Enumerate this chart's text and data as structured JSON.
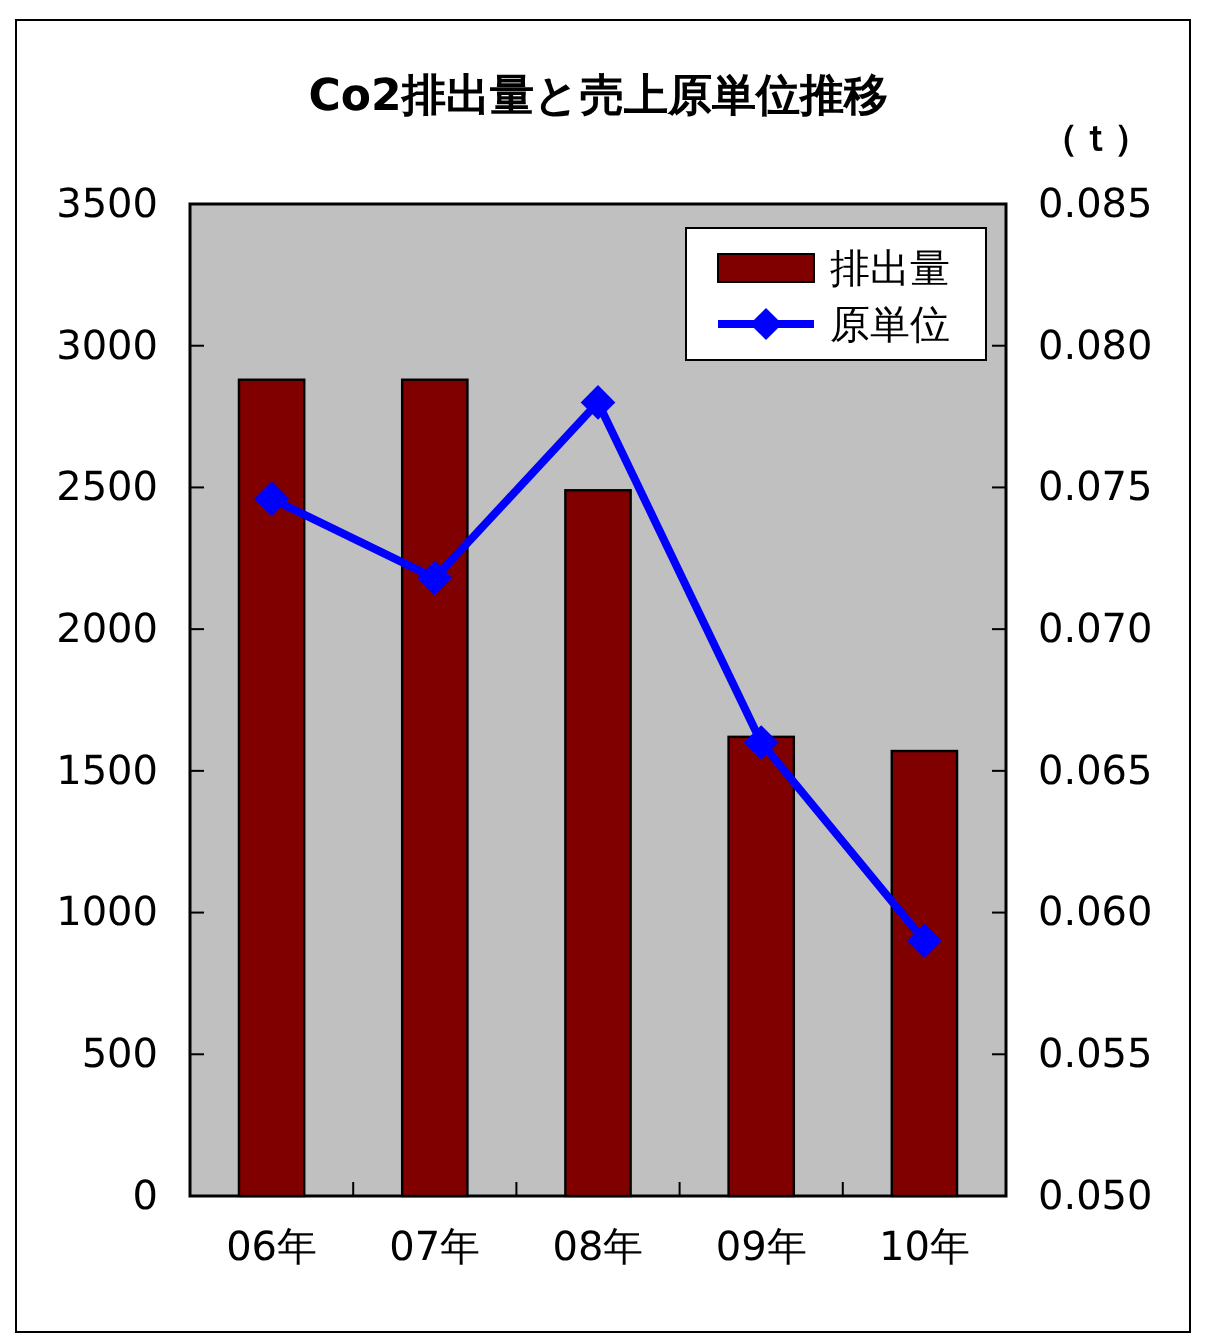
{
  "chart_data": {
    "type": "bar",
    "title": "Co2排出量と売上原単位推移",
    "y2label": "（ｔ）",
    "categories": [
      "06年",
      "07年",
      "08年",
      "09年",
      "10年"
    ],
    "series": [
      {
        "name": "排出量",
        "color": "#800000",
        "values": [
          2880,
          2880,
          2490,
          1620,
          1570
        ]
      },
      {
        "name": "原単位",
        "type": "line",
        "axis": "y2",
        "color": "#0000ff",
        "marker": "diamond",
        "values": [
          0.0746,
          0.0718,
          0.078,
          0.066,
          0.059
        ]
      }
    ],
    "ylim": [
      0,
      3500
    ],
    "yticks": [
      0,
      500,
      1000,
      1500,
      2000,
      2500,
      3000,
      3500
    ],
    "y2lim": [
      0.05,
      0.085
    ],
    "y2ticks": [
      {
        "value": 0.05,
        "label": "0.050"
      },
      0.055,
      {
        "value": 0.06,
        "label": "0.060"
      },
      0.065,
      {
        "value": 0.07,
        "label": "0.070"
      },
      0.075,
      {
        "value": 0.08,
        "label": "0.080"
      },
      0.085
    ],
    "grid": false,
    "legend": "top right"
  }
}
